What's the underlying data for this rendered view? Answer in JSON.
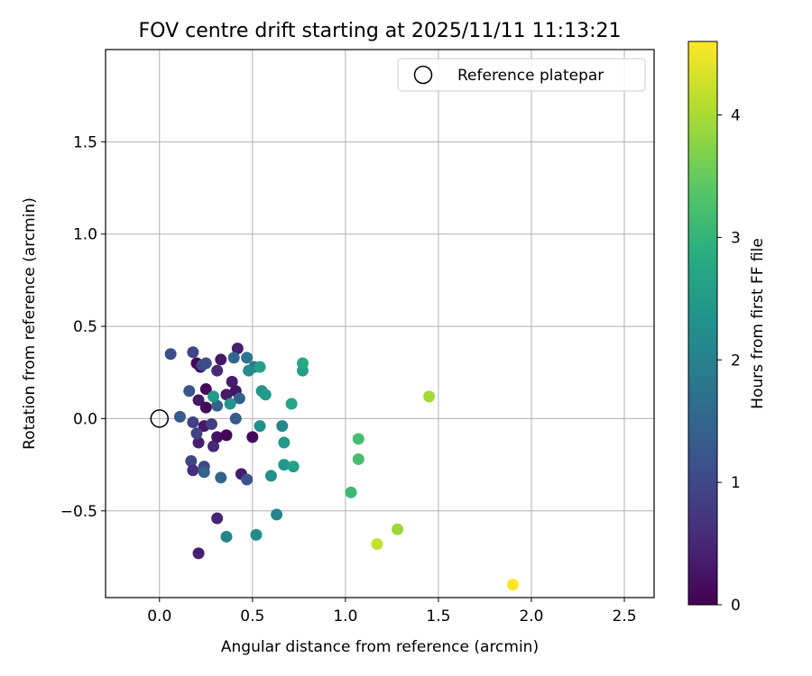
{
  "chart_data": {
    "type": "scatter",
    "title": "FOV centre drift starting at 2025/11/11 11:13:21",
    "xlabel": "Angular distance from reference (arcmin)",
    "ylabel": "Rotation from reference (arcmin)",
    "xlim": [
      -0.29,
      2.66
    ],
    "ylim": [
      -0.97,
      2.0
    ],
    "xticks": [
      {
        "value": 0.0,
        "label": "0.0"
      },
      {
        "value": 0.5,
        "label": "0.5"
      },
      {
        "value": 1.0,
        "label": "1.0"
      },
      {
        "value": 1.5,
        "label": "1.5"
      },
      {
        "value": 2.0,
        "label": "2.0"
      },
      {
        "value": 2.5,
        "label": "2.5"
      }
    ],
    "yticks": [
      {
        "value": -0.5,
        "label": "−0.5"
      },
      {
        "value": 0.0,
        "label": "0.0"
      },
      {
        "value": 0.5,
        "label": "0.5"
      },
      {
        "value": 1.0,
        "label": "1.0"
      },
      {
        "value": 1.5,
        "label": "1.5"
      }
    ],
    "grid": true,
    "legend": {
      "position": "top-right",
      "entries": [
        {
          "label": "Reference platepar",
          "marker": "open-circle"
        }
      ]
    },
    "reference_point": {
      "x": 0.0,
      "y": 0.0
    },
    "colorbar": {
      "label": "Hours from first FF file",
      "colormap": "viridis",
      "range": [
        0,
        4.6
      ],
      "ticks": [
        {
          "value": 0,
          "label": "0"
        },
        {
          "value": 1,
          "label": "1"
        },
        {
          "value": 2,
          "label": "2"
        },
        {
          "value": 3,
          "label": "3"
        },
        {
          "value": 4,
          "label": "4"
        }
      ]
    },
    "points": [
      {
        "x": 0.2,
        "y": 0.3,
        "c": 0.05
      },
      {
        "x": 0.22,
        "y": 0.28,
        "c": 0.2
      },
      {
        "x": 0.33,
        "y": 0.32,
        "c": 0.3
      },
      {
        "x": 0.42,
        "y": 0.38,
        "c": 0.4
      },
      {
        "x": 0.25,
        "y": 0.16,
        "c": 0.1
      },
      {
        "x": 0.39,
        "y": 0.2,
        "c": 0.35
      },
      {
        "x": 0.41,
        "y": 0.15,
        "c": 0.25
      },
      {
        "x": 0.36,
        "y": 0.13,
        "c": 0.3
      },
      {
        "x": 0.21,
        "y": 0.1,
        "c": 0.3
      },
      {
        "x": 0.25,
        "y": 0.06,
        "c": 0.15
      },
      {
        "x": 0.24,
        "y": -0.04,
        "c": 0.3
      },
      {
        "x": 0.21,
        "y": -0.13,
        "c": 0.4
      },
      {
        "x": 0.31,
        "y": -0.1,
        "c": 0.2
      },
      {
        "x": 0.36,
        "y": -0.09,
        "c": 0.05
      },
      {
        "x": 0.5,
        "y": -0.1,
        "c": 0.1
      },
      {
        "x": 0.29,
        "y": -0.15,
        "c": 0.5
      },
      {
        "x": 0.44,
        "y": -0.3,
        "c": 0.35
      },
      {
        "x": 0.31,
        "y": -0.54,
        "c": 0.45
      },
      {
        "x": 0.21,
        "y": -0.73,
        "c": 0.4
      },
      {
        "x": 0.31,
        "y": 0.26,
        "c": 0.55
      },
      {
        "x": 0.06,
        "y": 0.35,
        "c": 1.1
      },
      {
        "x": 0.18,
        "y": 0.36,
        "c": 0.95
      },
      {
        "x": 0.23,
        "y": 0.29,
        "c": 1.0
      },
      {
        "x": 0.25,
        "y": 0.3,
        "c": 1.1
      },
      {
        "x": 0.16,
        "y": 0.15,
        "c": 1.2
      },
      {
        "x": 0.11,
        "y": 0.01,
        "c": 1.3
      },
      {
        "x": 0.18,
        "y": -0.02,
        "c": 0.9
      },
      {
        "x": 0.2,
        "y": -0.08,
        "c": 0.9
      },
      {
        "x": 0.28,
        "y": -0.03,
        "c": 0.85
      },
      {
        "x": 0.17,
        "y": -0.23,
        "c": 1.0
      },
      {
        "x": 0.18,
        "y": -0.28,
        "c": 0.6
      },
      {
        "x": 0.24,
        "y": -0.26,
        "c": 1.0
      },
      {
        "x": 0.24,
        "y": -0.29,
        "c": 1.4
      },
      {
        "x": 0.33,
        "y": -0.32,
        "c": 1.5
      },
      {
        "x": 0.47,
        "y": -0.33,
        "c": 1.2
      },
      {
        "x": 0.41,
        "y": 0.0,
        "c": 1.3
      },
      {
        "x": 0.31,
        "y": 0.07,
        "c": 1.45
      },
      {
        "x": 0.43,
        "y": 0.11,
        "c": 1.4
      },
      {
        "x": 0.4,
        "y": 0.33,
        "c": 1.5
      },
      {
        "x": 0.47,
        "y": 0.33,
        "c": 1.8
      },
      {
        "x": 0.51,
        "y": 0.28,
        "c": 1.75
      },
      {
        "x": 0.48,
        "y": 0.26,
        "c": 2.2
      },
      {
        "x": 0.38,
        "y": 0.08,
        "c": 2.4
      },
      {
        "x": 0.29,
        "y": 0.12,
        "c": 2.5
      },
      {
        "x": 0.54,
        "y": 0.28,
        "c": 2.6
      },
      {
        "x": 0.55,
        "y": 0.15,
        "c": 2.4
      },
      {
        "x": 0.57,
        "y": 0.13,
        "c": 2.5
      },
      {
        "x": 0.54,
        "y": -0.04,
        "c": 2.3
      },
      {
        "x": 0.6,
        "y": -0.31,
        "c": 2.3
      },
      {
        "x": 0.66,
        "y": -0.04,
        "c": 2.1
      },
      {
        "x": 0.67,
        "y": -0.13,
        "c": 2.5
      },
      {
        "x": 0.67,
        "y": -0.25,
        "c": 2.4
      },
      {
        "x": 0.72,
        "y": -0.26,
        "c": 2.6
      },
      {
        "x": 0.71,
        "y": 0.08,
        "c": 2.7
      },
      {
        "x": 0.77,
        "y": 0.26,
        "c": 2.6
      },
      {
        "x": 0.77,
        "y": 0.3,
        "c": 2.75
      },
      {
        "x": 0.63,
        "y": -0.52,
        "c": 2.1
      },
      {
        "x": 0.52,
        "y": -0.63,
        "c": 2.2
      },
      {
        "x": 0.36,
        "y": -0.64,
        "c": 2.1
      },
      {
        "x": 1.07,
        "y": -0.11,
        "c": 3.2
      },
      {
        "x": 1.07,
        "y": -0.22,
        "c": 3.2
      },
      {
        "x": 1.03,
        "y": -0.4,
        "c": 3.1
      },
      {
        "x": 1.28,
        "y": -0.6,
        "c": 3.9
      },
      {
        "x": 1.17,
        "y": -0.68,
        "c": 4.2
      },
      {
        "x": 1.45,
        "y": 0.12,
        "c": 3.95
      },
      {
        "x": 1.9,
        "y": -0.9,
        "c": 4.6
      }
    ]
  }
}
